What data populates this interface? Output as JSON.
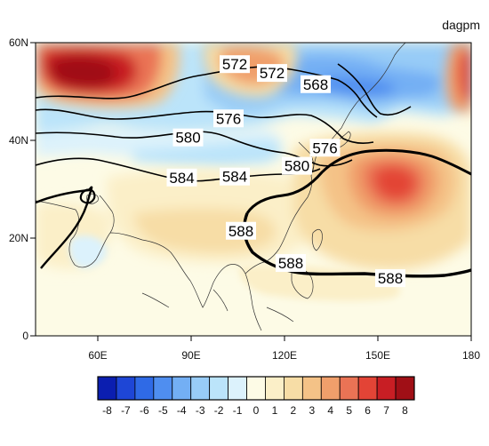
{
  "units": "dagpm",
  "axes": {
    "y_ticks": [
      {
        "value": 0,
        "label": "0"
      },
      {
        "value": 20,
        "label": "20N"
      },
      {
        "value": 40,
        "label": "40N"
      },
      {
        "value": 60,
        "label": "60N"
      }
    ],
    "x_ticks": [
      {
        "value": 60,
        "label": "60E"
      },
      {
        "value": 90,
        "label": "90E"
      },
      {
        "value": 120,
        "label": "120E"
      },
      {
        "value": 150,
        "label": "150E"
      },
      {
        "value": 180,
        "label": "180"
      }
    ]
  },
  "contour_labels": [
    {
      "text": "572",
      "lon": 104,
      "lat": 55.6
    },
    {
      "text": "572",
      "lon": 116,
      "lat": 53.8
    },
    {
      "text": "568",
      "lon": 130,
      "lat": 51.5
    },
    {
      "text": "576",
      "lon": 102,
      "lat": 44.5
    },
    {
      "text": "580",
      "lon": 89,
      "lat": 40.6
    },
    {
      "text": "576",
      "lon": 133,
      "lat": 38.5
    },
    {
      "text": "580",
      "lon": 124,
      "lat": 34.8
    },
    {
      "text": "584",
      "lon": 87,
      "lat": 32.4
    },
    {
      "text": "584",
      "lon": 104,
      "lat": 32.6
    },
    {
      "text": "588",
      "lon": 106,
      "lat": 21.5
    },
    {
      "text": "588",
      "lon": 122,
      "lat": 14.9
    },
    {
      "text": "588",
      "lon": 154,
      "lat": 11.8
    }
  ],
  "colorbar": {
    "labels": [
      "-8",
      "-7",
      "-6",
      "-5",
      "-4",
      "-3",
      "-2",
      "-1",
      "0",
      "1",
      "2",
      "3",
      "4",
      "5",
      "6",
      "7",
      "8"
    ],
    "colors": [
      "#0b1eb0",
      "#1e46d6",
      "#2f6ae6",
      "#4f8ef0",
      "#73aff4",
      "#98ccf7",
      "#bbe4fa",
      "#dcf2fc",
      "#fdfbe6",
      "#fbefc8",
      "#f7dda6",
      "#f4c287",
      "#f09f6b",
      "#ea7355",
      "#e34436",
      "#c81e24",
      "#a00f16"
    ]
  }
}
